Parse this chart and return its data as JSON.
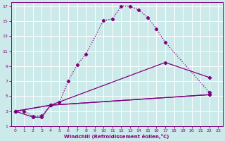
{
  "xlabel": "Windchill (Refroidissement éolien,°C)",
  "background_color": "#cceaea",
  "grid_color": "#ffffff",
  "line_color": "#800080",
  "xlim": [
    -0.5,
    23.5
  ],
  "ylim": [
    1,
    17.5
  ],
  "xticks": [
    0,
    1,
    2,
    3,
    4,
    5,
    6,
    7,
    8,
    9,
    10,
    11,
    12,
    13,
    14,
    15,
    16,
    17,
    18,
    19,
    20,
    21,
    22,
    23
  ],
  "yticks": [
    1,
    3,
    5,
    7,
    9,
    11,
    13,
    15,
    17
  ],
  "series1_x": [
    0,
    1,
    2,
    3,
    4,
    5,
    6,
    7,
    8,
    10,
    11,
    12,
    13,
    14,
    15,
    16,
    17,
    22
  ],
  "series1_y": [
    3,
    3,
    2.3,
    2.4,
    3.8,
    4.2,
    7.0,
    9.2,
    10.6,
    15.1,
    15.3,
    17.0,
    17.0,
    16.5,
    15.5,
    14.0,
    12.2,
    5.5
  ],
  "series2_x": [
    0,
    2,
    3,
    4,
    22
  ],
  "series2_y": [
    3.0,
    2.2,
    2.2,
    3.8,
    5.2
  ],
  "series3_x": [
    0,
    4,
    17,
    22
  ],
  "series3_y": [
    3.0,
    3.8,
    9.5,
    7.5
  ],
  "series4_x": [
    0,
    4,
    22
  ],
  "series4_y": [
    3.0,
    3.8,
    5.2
  ]
}
